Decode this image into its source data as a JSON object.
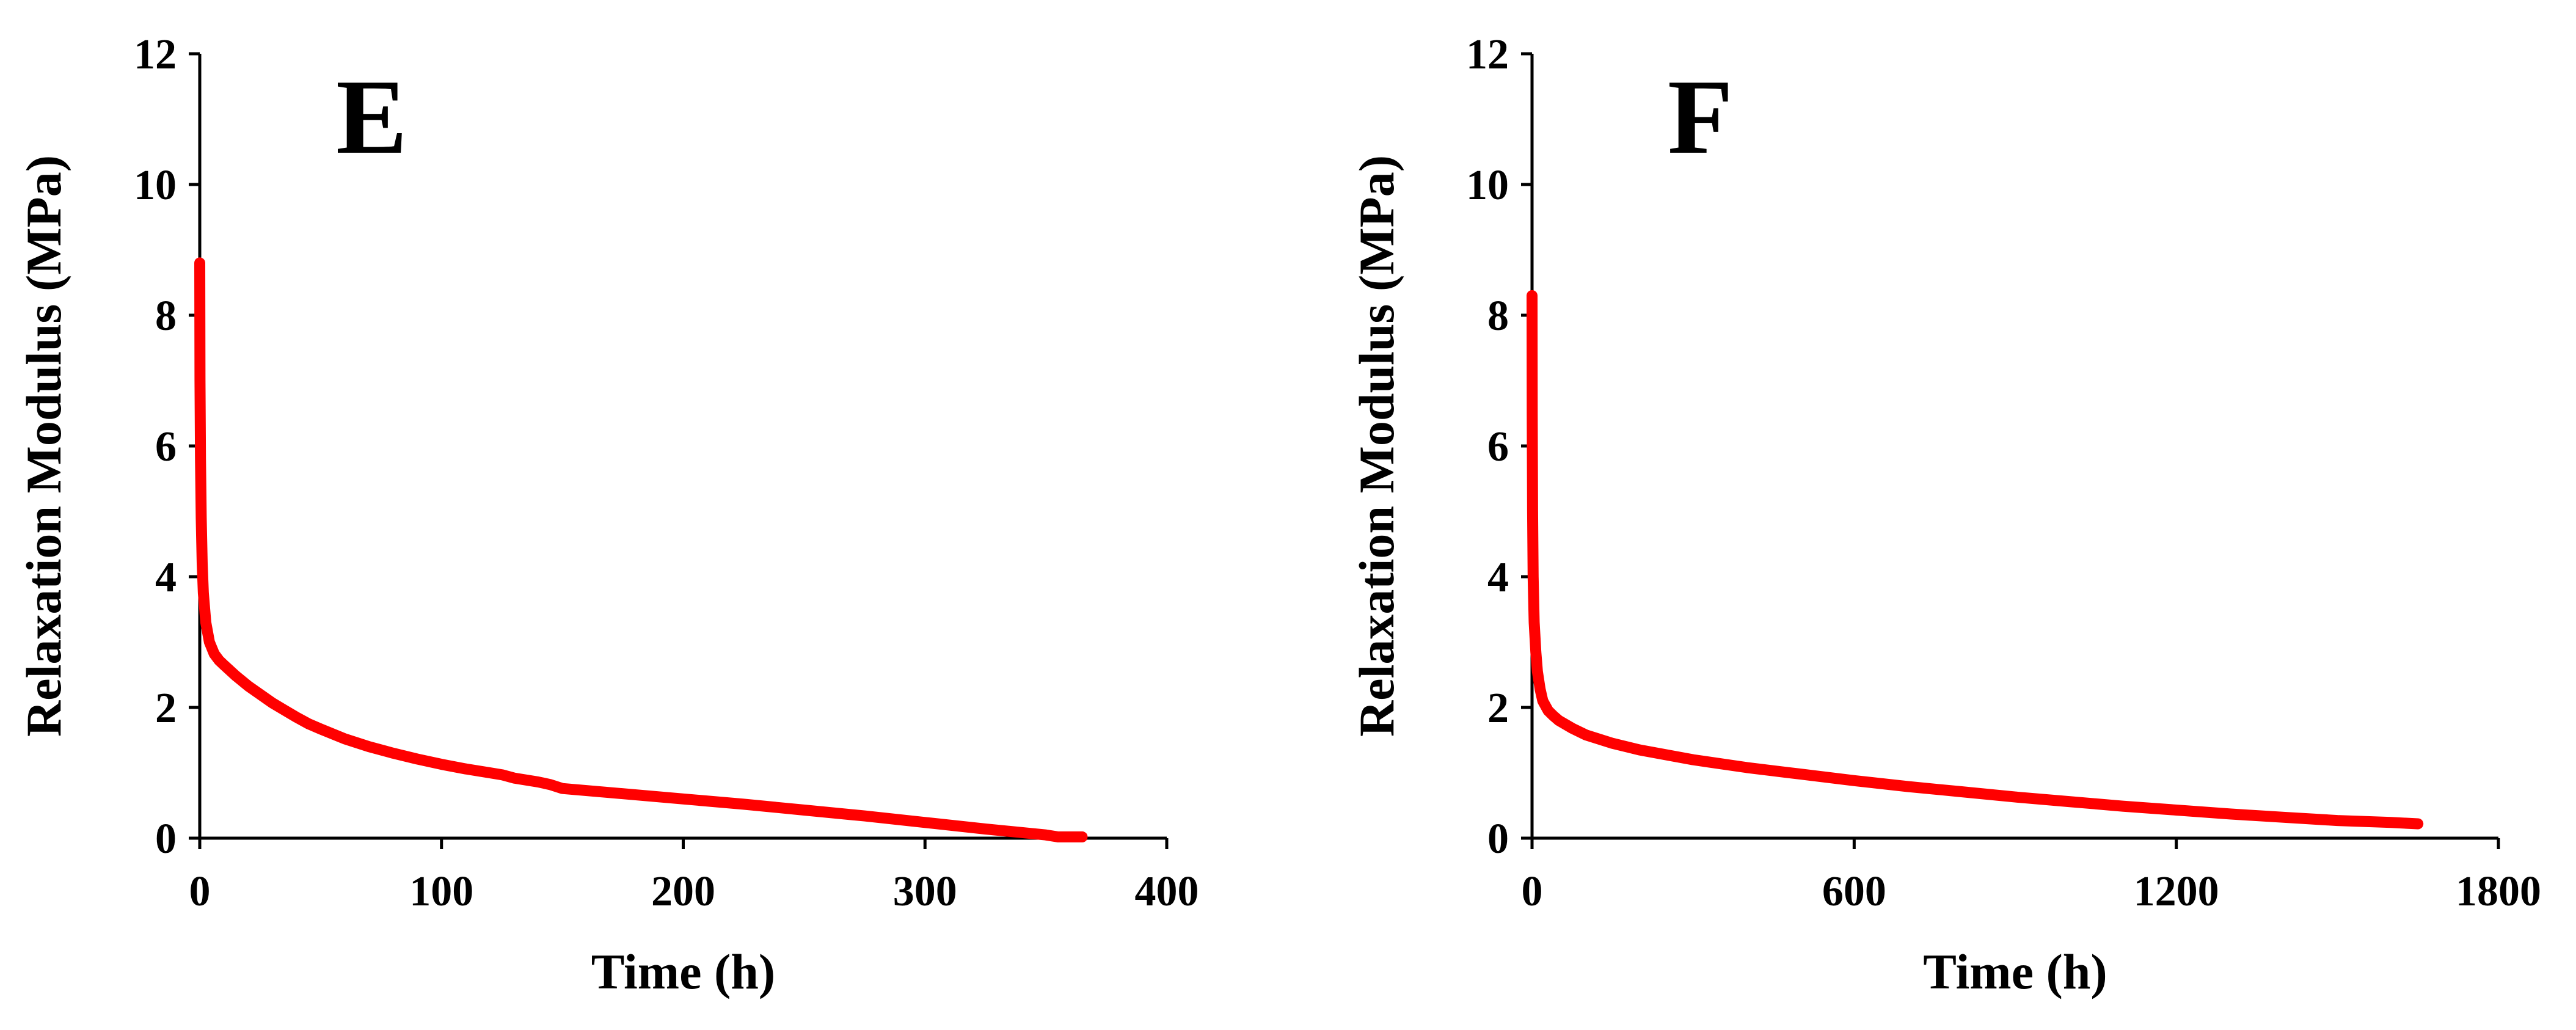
{
  "figure": {
    "background": "#ffffff"
  },
  "chart_data": [
    {
      "type": "line",
      "panel_label": "E",
      "xlabel": "Time (h)",
      "ylabel": "Relaxation Modulus (MPa)",
      "xlim": [
        0,
        400
      ],
      "ylim": [
        0,
        12
      ],
      "xticks": [
        0,
        100,
        200,
        300,
        400
      ],
      "yticks": [
        0,
        2,
        4,
        6,
        8,
        10,
        12
      ],
      "grid": false,
      "series": [
        {
          "color": "#ff0000",
          "x": [
            0,
            0.1,
            0.3,
            0.6,
            1,
            1.5,
            2.5,
            4,
            6,
            8,
            10,
            15,
            20,
            25,
            30,
            35,
            40,
            45,
            50,
            60,
            70,
            80,
            90,
            100,
            110,
            120,
            125,
            130,
            140,
            145,
            150,
            175,
            200,
            225,
            250,
            275,
            300,
            325,
            350,
            355,
            365
          ],
          "y": [
            8.8,
            7.0,
            5.8,
            4.9,
            4.2,
            3.75,
            3.3,
            3.0,
            2.82,
            2.72,
            2.65,
            2.48,
            2.33,
            2.2,
            2.07,
            1.96,
            1.85,
            1.75,
            1.67,
            1.52,
            1.4,
            1.3,
            1.21,
            1.13,
            1.06,
            1.0,
            0.97,
            0.92,
            0.86,
            0.82,
            0.76,
            0.68,
            0.6,
            0.52,
            0.43,
            0.34,
            0.24,
            0.14,
            0.05,
            0.02,
            0.02
          ]
        }
      ]
    },
    {
      "type": "line",
      "panel_label": "F",
      "xlabel": "Time (h)",
      "ylabel": "Relaxation Modulus (MPa)",
      "xlim": [
        0,
        1800
      ],
      "ylim": [
        0,
        12
      ],
      "xticks": [
        0,
        600,
        1200,
        1800
      ],
      "yticks": [
        0,
        2,
        4,
        6,
        8,
        10,
        12
      ],
      "grid": false,
      "series": [
        {
          "color": "#ff0000",
          "x": [
            0,
            0.3,
            1,
            2,
            4,
            7,
            10,
            15,
            20,
            30,
            40,
            50,
            75,
            100,
            150,
            200,
            300,
            400,
            500,
            600,
            700,
            800,
            900,
            1000,
            1100,
            1200,
            1300,
            1400,
            1500,
            1600,
            1650
          ],
          "y": [
            8.3,
            6.5,
            5.0,
            4.0,
            3.3,
            2.85,
            2.55,
            2.28,
            2.1,
            1.95,
            1.87,
            1.8,
            1.68,
            1.58,
            1.45,
            1.35,
            1.2,
            1.08,
            0.98,
            0.88,
            0.79,
            0.71,
            0.63,
            0.56,
            0.49,
            0.43,
            0.37,
            0.32,
            0.27,
            0.24,
            0.22
          ]
        }
      ]
    }
  ]
}
